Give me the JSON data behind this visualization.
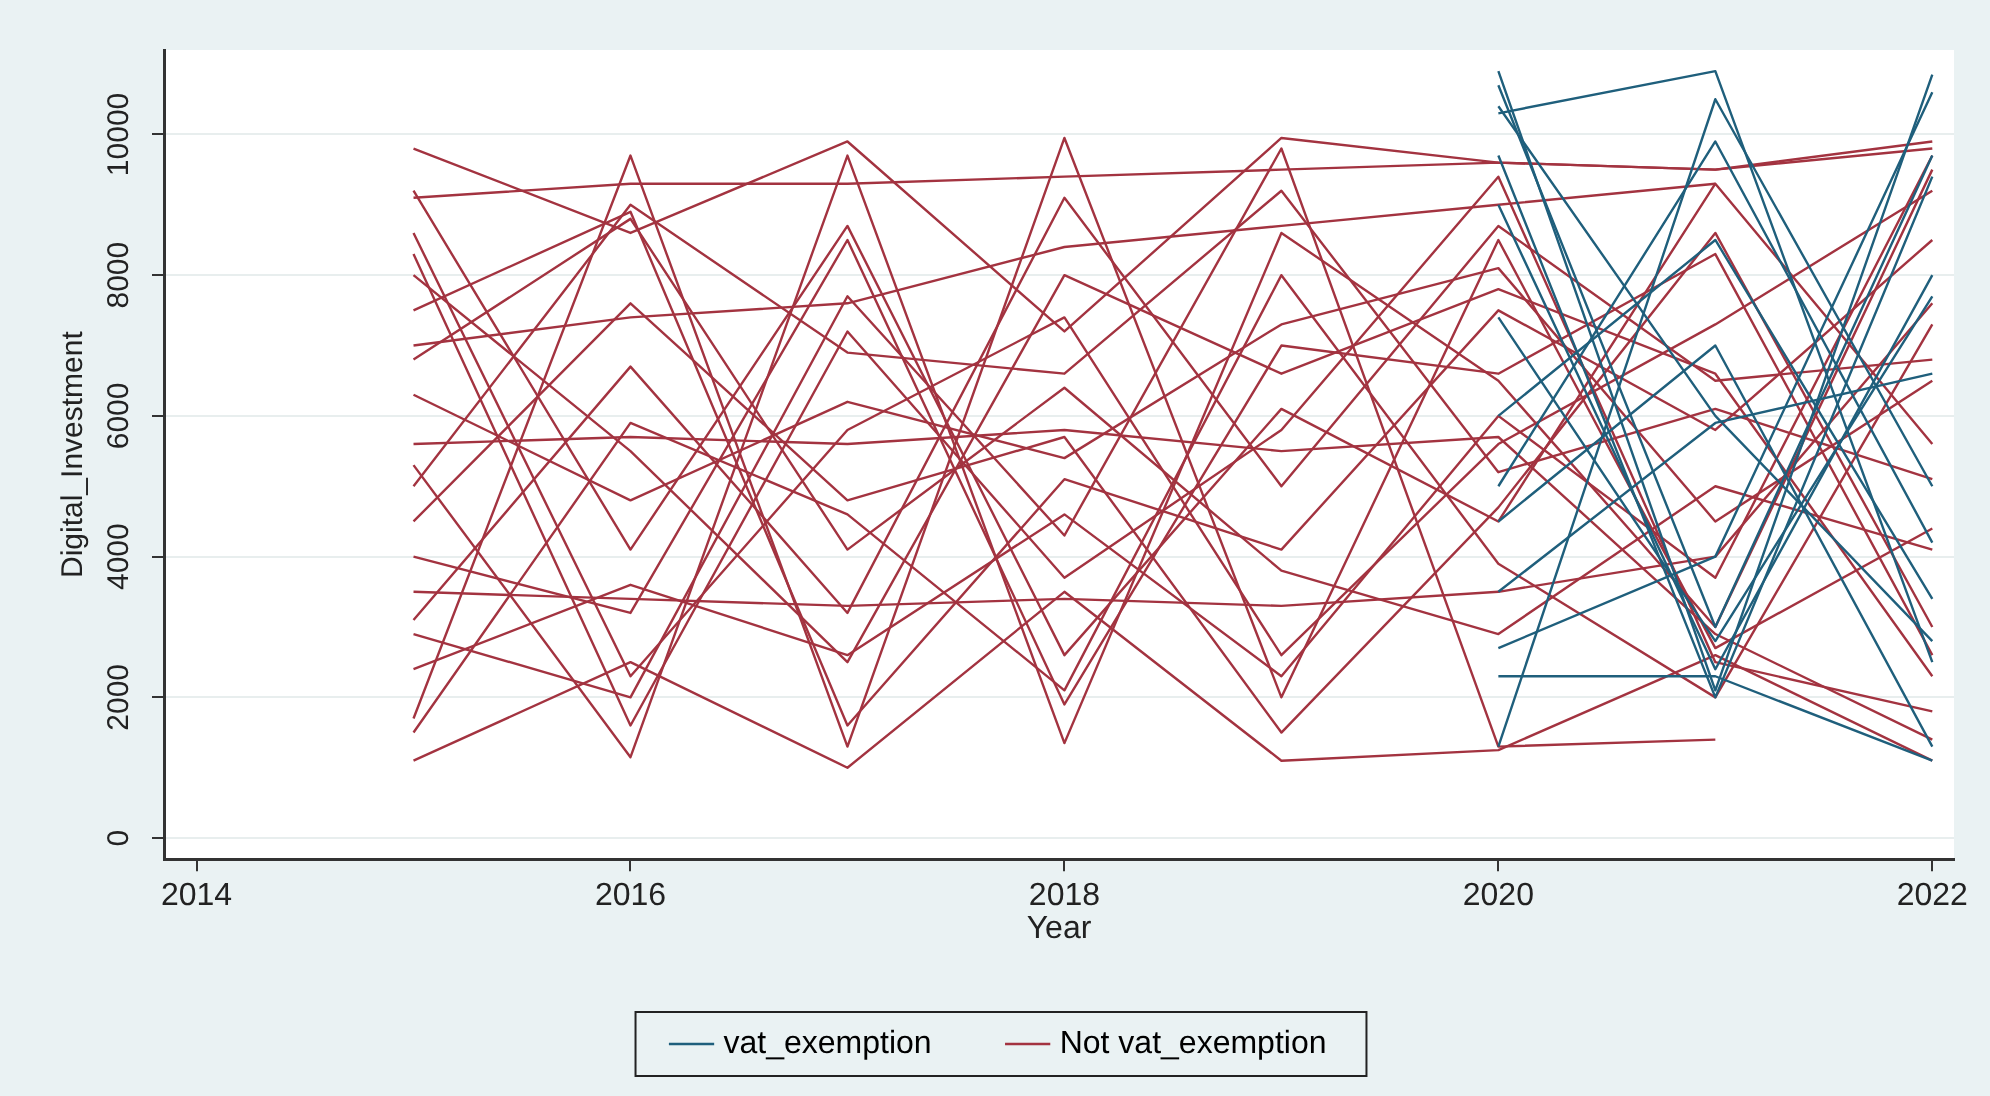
{
  "chart_data": {
    "type": "line",
    "xlabel": "Year",
    "ylabel": "Digital_Investment",
    "x": [
      2015,
      2016,
      2017,
      2018,
      2019,
      2020,
      2021,
      2022
    ],
    "xlim": [
      2013.85,
      2022.1
    ],
    "xticks": [
      2014,
      2016,
      2018,
      2020,
      2022
    ],
    "ylim": [
      -300,
      11200
    ],
    "yticks": [
      0,
      2000,
      4000,
      6000,
      8000,
      10000
    ],
    "grid": "y",
    "legend": "bottom",
    "marker": "none",
    "line_style": "solid",
    "series": [
      {
        "name": "vat_exemption",
        "color": "#1f5f7c",
        "x": [
          2020,
          2021,
          2022
        ],
        "values": [
          10900,
          2100,
          10850
        ]
      },
      {
        "color": "#1f5f7c",
        "x": [
          2020,
          2021,
          2022
        ],
        "values": [
          10300,
          10900,
          2500
        ]
      },
      {
        "color": "#1f5f7c",
        "x": [
          2020,
          2021,
          2022
        ],
        "values": [
          1300,
          10500,
          5000
        ]
      },
      {
        "color": "#1f5f7c",
        "x": [
          2020,
          2021,
          2022
        ],
        "values": [
          10700,
          3000,
          9700
        ]
      },
      {
        "color": "#1f5f7c",
        "x": [
          2020,
          2021,
          2022
        ],
        "values": [
          2300,
          2300,
          1100
        ]
      },
      {
        "color": "#1f5f7c",
        "x": [
          2020,
          2021,
          2022
        ],
        "values": [
          9700,
          2000,
          9400
        ]
      },
      {
        "color": "#1f5f7c",
        "x": [
          2020,
          2021,
          2022
        ],
        "values": [
          4500,
          7000,
          1300
        ]
      },
      {
        "color": "#1f5f7c",
        "x": [
          2020,
          2021,
          2022
        ],
        "values": [
          10400,
          6000,
          2800
        ]
      },
      {
        "color": "#1f5f7c",
        "x": [
          2020,
          2021,
          2022
        ],
        "values": [
          5000,
          9900,
          4200
        ]
      },
      {
        "color": "#1f5f7c",
        "x": [
          2020,
          2021,
          2022
        ],
        "values": [
          7400,
          2800,
          7700
        ]
      },
      {
        "color": "#1f5f7c",
        "x": [
          2020,
          2021,
          2022
        ],
        "values": [
          2700,
          4000,
          10600
        ]
      },
      {
        "color": "#1f5f7c",
        "x": [
          2020,
          2021,
          2022
        ],
        "values": [
          6000,
          8500,
          3400
        ]
      },
      {
        "color": "#1f5f7c",
        "x": [
          2020,
          2021,
          2022
        ],
        "values": [
          9000,
          2400,
          8000
        ]
      },
      {
        "color": "#1f5f7c",
        "x": [
          2020,
          2021,
          2022
        ],
        "values": [
          3500,
          5900,
          6600
        ]
      },
      {
        "name": "Not vat_exemption",
        "color": "#a33340",
        "values": [
          9800,
          8600,
          9900,
          7200,
          9950,
          9600,
          9500,
          9900
        ]
      },
      {
        "color": "#a33340",
        "values": [
          1100,
          2500,
          1000,
          3500,
          1100,
          1250,
          2600,
          1100
        ]
      },
      {
        "color": "#a33340",
        "values": [
          9100,
          9300,
          9300,
          9400,
          9500,
          9600,
          9500,
          9800
        ]
      },
      {
        "color": "#a33340",
        "values": [
          1700,
          9700,
          1300,
          9950,
          2000,
          8500,
          2700,
          4400
        ]
      },
      {
        "color": "#a33340",
        "values": [
          5300,
          1150,
          9700,
          1350,
          8600,
          6500,
          3000,
          9500
        ]
      },
      {
        "color": "#a33340",
        "values": [
          3500,
          3400,
          3300,
          3400,
          3300,
          3500,
          4000,
          7600
        ]
      },
      {
        "color": "#a33340",
        "values": [
          8000,
          5500,
          2500,
          8000,
          6600,
          7800,
          6600,
          2300
        ]
      },
      {
        "color": "#a33340",
        "values": [
          6300,
          4800,
          6200,
          5400,
          7300,
          8100,
          4500,
          6500
        ]
      },
      {
        "color": "#a33340",
        "values": [
          4500,
          7600,
          4800,
          5700,
          1500,
          4700,
          8600,
          3000
        ]
      },
      {
        "color": "#a33340",
        "values": [
          2900,
          2000,
          7700,
          4300,
          9800,
          1300,
          1400,
          null
        ]
      },
      {
        "color": "#a33340",
        "values": [
          7500,
          8900,
          1600,
          5100,
          4100,
          7500,
          5800,
          8500
        ]
      },
      {
        "color": "#a33340",
        "values": [
          9200,
          4100,
          8700,
          2600,
          6100,
          4500,
          9300,
          5600
        ]
      },
      {
        "color": "#a33340",
        "values": [
          5600,
          5700,
          5600,
          5800,
          5500,
          5700,
          2900,
          1400
        ]
      },
      {
        "color": "#a33340",
        "values": [
          3100,
          6700,
          3200,
          9100,
          5000,
          8700,
          6500,
          6800
        ]
      },
      {
        "color": "#a33340",
        "values": [
          8600,
          2300,
          5800,
          7400,
          2600,
          5600,
          7300,
          9200
        ]
      },
      {
        "color": "#a33340",
        "values": [
          1500,
          5900,
          4600,
          2100,
          8000,
          3900,
          2000,
          7300
        ]
      },
      {
        "color": "#a33340",
        "values": [
          6800,
          8800,
          4100,
          6400,
          3800,
          2900,
          5000,
          4100
        ]
      },
      {
        "color": "#a33340",
        "values": [
          4000,
          3200,
          8500,
          1900,
          7000,
          6600,
          8300,
          2600
        ]
      },
      {
        "color": "#a33340",
        "values": [
          7000,
          7400,
          7600,
          8400,
          8700,
          9000,
          9300,
          null
        ]
      },
      {
        "color": "#a33340",
        "values": [
          2400,
          3600,
          2600,
          4600,
          2300,
          6000,
          3700,
          9700
        ]
      },
      {
        "color": "#a33340",
        "values": [
          5000,
          9000,
          6900,
          6600,
          9200,
          5200,
          6100,
          5100
        ]
      },
      {
        "color": "#a33340",
        "values": [
          8300,
          1600,
          7200,
          3700,
          5800,
          9400,
          2500,
          1800
        ]
      }
    ]
  }
}
